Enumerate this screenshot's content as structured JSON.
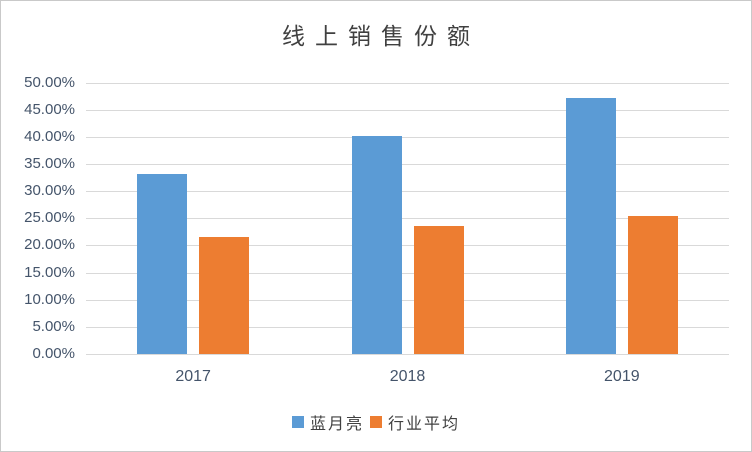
{
  "window": {
    "background": "#FFFFFF",
    "border_color": "#C9C9C9"
  },
  "chart_data": {
    "type": "bar",
    "title": "线上销售份额",
    "categories": [
      "2017",
      "2018",
      "2019"
    ],
    "series": [
      {
        "name": "蓝月亮",
        "color": "#5B9BD5",
        "values": [
          33.1,
          40.2,
          47.2
        ]
      },
      {
        "name": "行业平均",
        "color": "#ED7D31",
        "values": [
          21.5,
          23.5,
          25.4
        ]
      }
    ],
    "unit": "percent",
    "ylim": [
      0,
      50
    ],
    "ytick_step": 5,
    "ytick_labels": [
      "0.00%",
      "5.00%",
      "10.00%",
      "15.00%",
      "20.00%",
      "25.00%",
      "30.00%",
      "35.00%",
      "40.00%",
      "45.00%",
      "50.00%"
    ],
    "xlabel": "",
    "ylabel": "",
    "grid": true,
    "gridline_color": "#D9D9D9",
    "axis_label_color": "#44546A",
    "title_color": "#404040",
    "legend_position": "bottom",
    "legend_entries": [
      "蓝月亮",
      "行业平均"
    ]
  }
}
